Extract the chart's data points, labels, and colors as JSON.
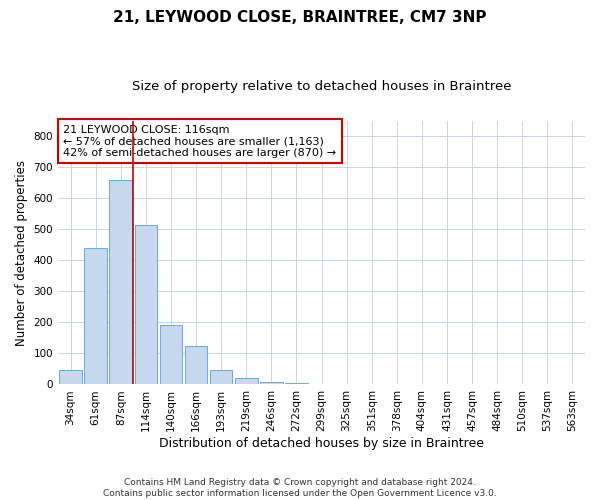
{
  "title": "21, LEYWOOD CLOSE, BRAINTREE, CM7 3NP",
  "subtitle": "Size of property relative to detached houses in Braintree",
  "xlabel": "Distribution of detached houses by size in Braintree",
  "ylabel": "Number of detached properties",
  "categories": [
    "34sqm",
    "61sqm",
    "87sqm",
    "114sqm",
    "140sqm",
    "166sqm",
    "193sqm",
    "219sqm",
    "246sqm",
    "272sqm",
    "299sqm",
    "325sqm",
    "351sqm",
    "378sqm",
    "404sqm",
    "431sqm",
    "457sqm",
    "484sqm",
    "510sqm",
    "537sqm",
    "563sqm"
  ],
  "values": [
    45,
    440,
    660,
    515,
    193,
    125,
    46,
    21,
    8,
    5,
    0,
    0,
    0,
    0,
    0,
    0,
    0,
    0,
    0,
    0,
    0
  ],
  "bar_color": "#c5d8ee",
  "bar_edge_color": "#6aaad4",
  "highlight_line_color": "#cc0000",
  "annotation_line1": "21 LEYWOOD CLOSE: 116sqm",
  "annotation_line2": "← 57% of detached houses are smaller (1,163)",
  "annotation_line3": "42% of semi-detached houses are larger (870) →",
  "annotation_box_color": "#cc0000",
  "ylim": [
    0,
    850
  ],
  "yticks": [
    0,
    100,
    200,
    300,
    400,
    500,
    600,
    700,
    800
  ],
  "title_fontsize": 11,
  "subtitle_fontsize": 9.5,
  "xlabel_fontsize": 9,
  "ylabel_fontsize": 8.5,
  "tick_fontsize": 7.5,
  "annotation_fontsize": 8,
  "footer_text": "Contains HM Land Registry data © Crown copyright and database right 2024.\nContains public sector information licensed under the Open Government Licence v3.0.",
  "footer_fontsize": 6.5,
  "background_color": "#ffffff",
  "grid_color": "#c8d4e4"
}
